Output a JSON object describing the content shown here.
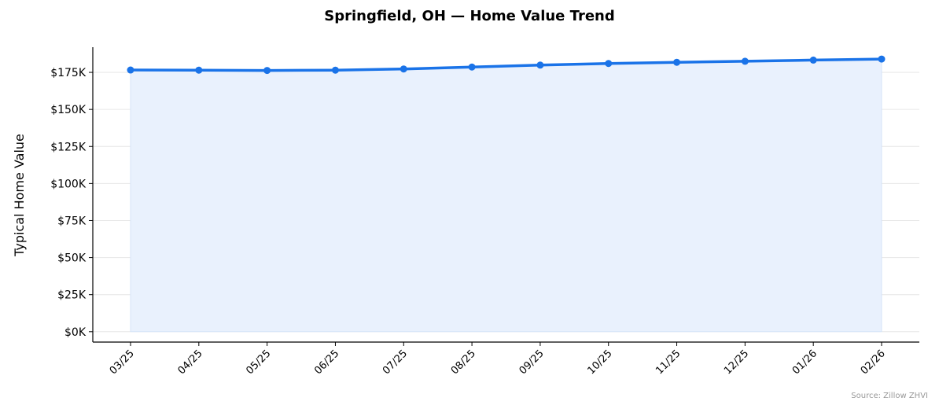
{
  "chart_data": {
    "type": "area",
    "title": "Springfield, OH — Home Value Trend",
    "xlabel": "",
    "ylabel": "Typical Home Value",
    "categories": [
      "03/25",
      "04/25",
      "05/25",
      "06/25",
      "07/25",
      "08/25",
      "09/25",
      "10/25",
      "11/25",
      "12/25",
      "01/26",
      "02/26"
    ],
    "series": [
      {
        "values": [
          176600,
          176500,
          176300,
          176500,
          177300,
          178600,
          179900,
          181000,
          181800,
          182500,
          183300,
          184000
        ]
      }
    ],
    "ylim": [
      -7000,
      192000
    ],
    "yticks": [
      0,
      25000,
      50000,
      75000,
      100000,
      125000,
      150000,
      175000
    ],
    "ytick_labels": [
      "$0K",
      "$25K",
      "$50K",
      "$75K",
      "$100K",
      "$125K",
      "$150K",
      "$175K"
    ],
    "grid": "horizontal",
    "legend": "none",
    "colors": {
      "line": "#1a73e8",
      "fill": "#e9f1fd",
      "grid": "#e6e6e6"
    },
    "source": "Source: Zillow ZHVI"
  }
}
